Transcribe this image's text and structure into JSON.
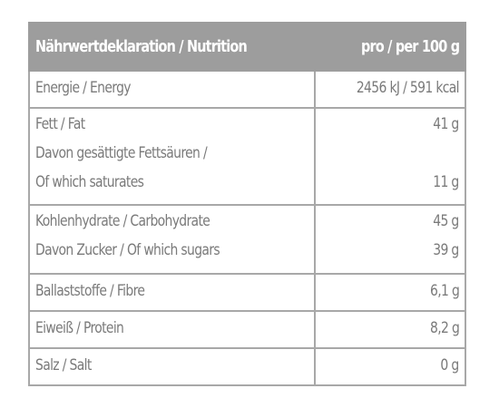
{
  "header": {
    "label": "Nährwertdeklaration / Nutrition",
    "value": "pro / per 100 g"
  },
  "rows": [
    {
      "lines": [
        "Energie / Energy"
      ],
      "values": [
        "2456 kJ / 591 kcal"
      ]
    },
    {
      "lines": [
        "Fett / Fat",
        "Davon gesättigte Fettsäuren /",
        "Of which saturates"
      ],
      "values": [
        "41 g",
        "",
        "11 g"
      ]
    },
    {
      "lines": [
        "Kohlenhydrate / Carbohydrate",
        "Davon Zucker / Of which sugars"
      ],
      "values": [
        "45 g",
        "39 g"
      ]
    },
    {
      "lines": [
        "Ballaststoffe / Fibre"
      ],
      "values": [
        "6,1 g"
      ]
    },
    {
      "lines": [
        "Eiweiß / Protein"
      ],
      "values": [
        "8,2 g"
      ]
    },
    {
      "lines": [
        "Salz / Salt"
      ],
      "values": [
        "0 g"
      ]
    }
  ]
}
